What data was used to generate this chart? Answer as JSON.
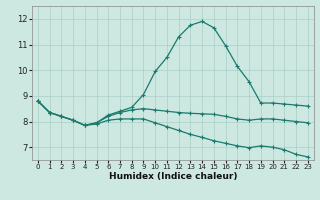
{
  "xlabel": "Humidex (Indice chaleur)",
  "xlim": [
    -0.5,
    23.5
  ],
  "ylim": [
    6.5,
    12.5
  ],
  "yticks": [
    7,
    8,
    9,
    10,
    11,
    12
  ],
  "xticks": [
    0,
    1,
    2,
    3,
    4,
    5,
    6,
    7,
    8,
    9,
    10,
    11,
    12,
    13,
    14,
    15,
    16,
    17,
    18,
    19,
    20,
    21,
    22,
    23
  ],
  "background_color": "#cce8e0",
  "grid_color": "#aacfc8",
  "line_color": "#1a7a6e",
  "lines": [
    {
      "x": [
        0,
        1,
        2,
        3,
        4,
        5,
        6,
        7,
        8,
        9,
        10,
        11,
        12,
        13,
        14,
        15,
        16,
        17,
        18,
        19,
        20,
        21,
        22,
        23
      ],
      "y": [
        8.8,
        8.35,
        8.2,
        8.05,
        7.85,
        7.95,
        8.25,
        8.4,
        8.55,
        9.05,
        9.95,
        10.5,
        11.3,
        11.75,
        11.9,
        11.65,
        10.95,
        10.15,
        9.55,
        8.72,
        8.72,
        8.68,
        8.64,
        8.6
      ]
    },
    {
      "x": [
        0,
        1,
        2,
        3,
        4,
        5,
        6,
        7,
        8,
        9,
        10,
        11,
        12,
        13,
        14,
        15,
        16,
        17,
        18,
        19,
        20,
        21,
        22,
        23
      ],
      "y": [
        8.8,
        8.35,
        8.2,
        8.05,
        7.85,
        7.95,
        8.2,
        8.35,
        8.45,
        8.5,
        8.45,
        8.4,
        8.35,
        8.32,
        8.3,
        8.28,
        8.2,
        8.1,
        8.05,
        8.1,
        8.1,
        8.05,
        8.0,
        7.95
      ]
    },
    {
      "x": [
        0,
        1,
        2,
        3,
        4,
        5,
        6,
        7,
        8,
        9,
        10,
        11,
        12,
        13,
        14,
        15,
        16,
        17,
        18,
        19,
        20,
        21,
        22,
        23
      ],
      "y": [
        8.8,
        8.35,
        8.2,
        8.05,
        7.85,
        7.9,
        8.05,
        8.1,
        8.1,
        8.1,
        7.95,
        7.8,
        7.65,
        7.5,
        7.38,
        7.25,
        7.15,
        7.05,
        6.98,
        7.05,
        7.0,
        6.9,
        6.72,
        6.62
      ]
    }
  ]
}
